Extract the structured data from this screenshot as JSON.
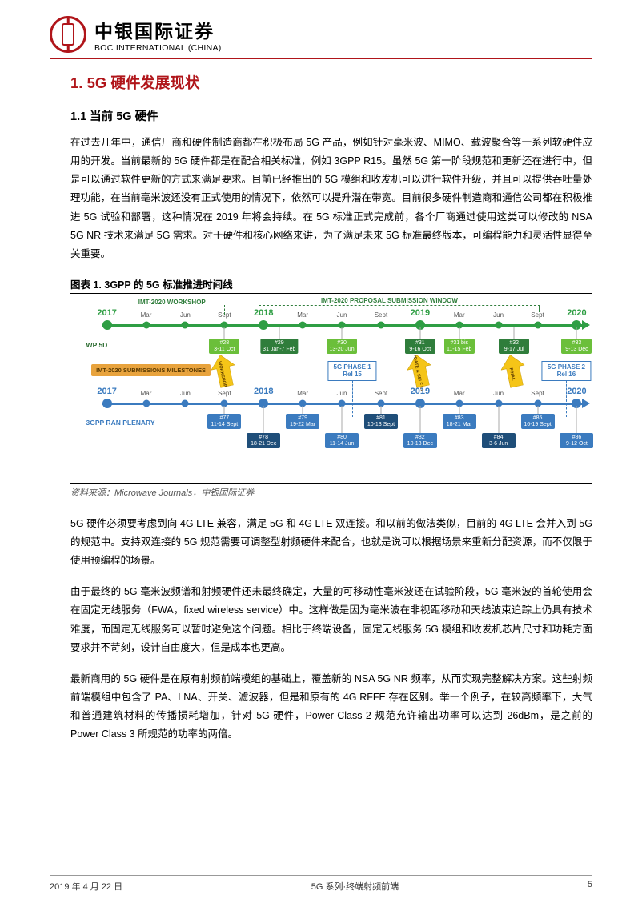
{
  "header": {
    "brand_cn": "中银国际证券",
    "brand_en": "BOC INTERNATIONAL (CHINA)"
  },
  "h1": "1.  5G 硬件发展现状",
  "h2": "1.1   当前 5G 硬件",
  "p1": "在过去几年中，通信厂商和硬件制造商都在积极布局 5G 产品，例如针对毫米波、MIMO、载波聚合等一系列软硬件应用的开发。当前最新的 5G 硬件都是在配合相关标准，例如 3GPP R15。虽然 5G 第一阶段规范和更新还在进行中，但是可以通过软件更新的方式来满足要求。目前已经推出的 5G 模组和收发机可以进行软件升级，并且可以提供吞吐量处理功能，在当前毫米波还没有正式使用的情况下，依然可以提升潜在带宽。目前很多硬件制造商和通信公司都在积极推进 5G 试验和部署，这种情况在 2019 年将会持续。在 5G 标准正式完成前，各个厂商通过使用这类可以修改的 NSA 5G NR 技术来满足 5G 需求。对于硬件和核心网络来讲，为了满足未来 5G 标准最终版本，可编程能力和灵活性显得至关重要。",
  "chart_title": "图表 1.    3GPP 的 5G 标准推进时间线",
  "p2": "5G 硬件必须要考虑到向 4G LTE 兼容，满足 5G 和 4G LTE 双连接。和以前的做法类似，目前的 4G LTE 会并入到 5G 的规范中。支持双连接的 5G 规范需要可调整型射频硬件来配合，也就是说可以根据场景来重新分配资源，而不仅限于使用预编程的场景。",
  "p3": "由于最终的 5G 毫米波频谱和射频硬件还未最终确定，大量的可移动性毫米波还在试验阶段，5G 毫米波的首轮使用会在固定无线服务（FWA，fixed wireless service）中。这样做是因为毫米波在非视距移动和天线波束追踪上仍具有技术难度，而固定无线服务可以暂时避免这个问题。相比于终端设备，固定无线服务 5G 模组和收发机芯片尺寸和功耗方面要求并不苛刻，设计自由度大，但是成本也更高。",
  "p4": "最新商用的 5G 硬件是在原有射频前端模组的基础上，覆盖新的 NSA 5G NR 频率，从而实现完整解决方案。这些射频前端模组中包含了 PA、LNA、开关、滤波器，但是和原有的 4G RFFE 存在区别。举一个例子，在较高频率下，大气和普通建筑材料的传播损耗增加，针对 5G 硬件，Power Class 2 规范允许输出功率可以达到 26dBm，是之前的 Power Class 3 所规范的功率的两倍。",
  "chart_source": "资料来源：Microwave Journals，中银国际证券",
  "footer": {
    "date": "2019 年 4 月 22 日",
    "center": "5G 系列·终端射频前端",
    "page": "5"
  },
  "timeline": {
    "colors": {
      "green_track": "#2f9e44",
      "blue_track": "#3b7bbf",
      "green_box": "#6bbf3a",
      "dkgreen_box": "#2f7d3b",
      "blue_box": "#3b7bbf",
      "dkblue_box": "#1f4e79",
      "orange_box": "#e8a33d",
      "yellow_arrow": "#f5c518",
      "text_dark": "#333333"
    },
    "top_labels": {
      "workshop": "IMT-2020 WORKSHOP",
      "submission": "IMT-2020 PROPOSAL SUBMISSION WINDOW"
    },
    "years": [
      "2017",
      "2018",
      "2019",
      "2020"
    ],
    "months": [
      "Mar",
      "Jun",
      "Sept",
      "Mar",
      "Jun",
      "Sept",
      "Mar",
      "Jun",
      "Sept"
    ],
    "year_x": [
      7,
      37,
      67,
      97
    ],
    "month_x": [
      14.5,
      22,
      29.5,
      44.5,
      52,
      59.5,
      74.5,
      82,
      89.5
    ],
    "wp5d_label": "WP 5D",
    "wp5d_boxes": [
      {
        "x": 29.5,
        "color": "#6bbf3a",
        "t1": "#28",
        "t2": "3-11 Oct"
      },
      {
        "x": 40,
        "color": "#2f7d3b",
        "t1": "#29",
        "t2": "31 Jan-7 Feb"
      },
      {
        "x": 52,
        "color": "#6bbf3a",
        "t1": "#30",
        "t2": "13-20 Jun"
      },
      {
        "x": 67,
        "color": "#2f7d3b",
        "t1": "#31",
        "t2": "9-16 Oct"
      },
      {
        "x": 74.5,
        "color": "#6bbf3a",
        "t1": "#31 bis",
        "t2": "11-15 Feb"
      },
      {
        "x": 85,
        "color": "#2f7d3b",
        "t1": "#32",
        "t2": "9-17 Jul"
      },
      {
        "x": 97,
        "color": "#6bbf3a",
        "t1": "#33",
        "t2": "9-13 Dec"
      }
    ],
    "milestones_label": "IMT-2020 SUBMISSIONS MILESTONES",
    "arrows": [
      {
        "x": 29.5,
        "text": "WORKSHOP"
      },
      {
        "x": 67,
        "text": "UPDATE & SELF EVAL"
      },
      {
        "x": 85,
        "text": "FINAL"
      }
    ],
    "phase1": {
      "text": "5G PHASE 1\nRel 15",
      "x": 54
    },
    "phase2": {
      "text": "5G PHASE 2\nRel 16",
      "x": 95
    },
    "ran_label": "3GPP RAN PLENARY",
    "ran_top": [
      {
        "x": 29.5,
        "color": "#3b7bbf",
        "t1": "#77",
        "t2": "11-14 Sept"
      },
      {
        "x": 44.5,
        "color": "#3b7bbf",
        "t1": "#79",
        "t2": "19-22 Mar"
      },
      {
        "x": 59.5,
        "color": "#1f4e79",
        "t1": "#81",
        "t2": "10-13 Sept"
      },
      {
        "x": 74.5,
        "color": "#3b7bbf",
        "t1": "#83",
        "t2": "18-21 Mar"
      },
      {
        "x": 89.5,
        "color": "#3b7bbf",
        "t1": "#85",
        "t2": "16-19 Sept"
      }
    ],
    "ran_bot": [
      {
        "x": 37,
        "color": "#1f4e79",
        "t1": "#78",
        "t2": "18-21 Dec"
      },
      {
        "x": 52,
        "color": "#3b7bbf",
        "t1": "#80",
        "t2": "11-14 Jun"
      },
      {
        "x": 67,
        "color": "#3b7bbf",
        "t1": "#82",
        "t2": "10-13 Dec"
      },
      {
        "x": 82,
        "color": "#1f4e79",
        "t1": "#84",
        "t2": "3-6 Jun"
      },
      {
        "x": 97,
        "color": "#3b7bbf",
        "t1": "#86",
        "t2": "9-12 Oct"
      }
    ]
  }
}
